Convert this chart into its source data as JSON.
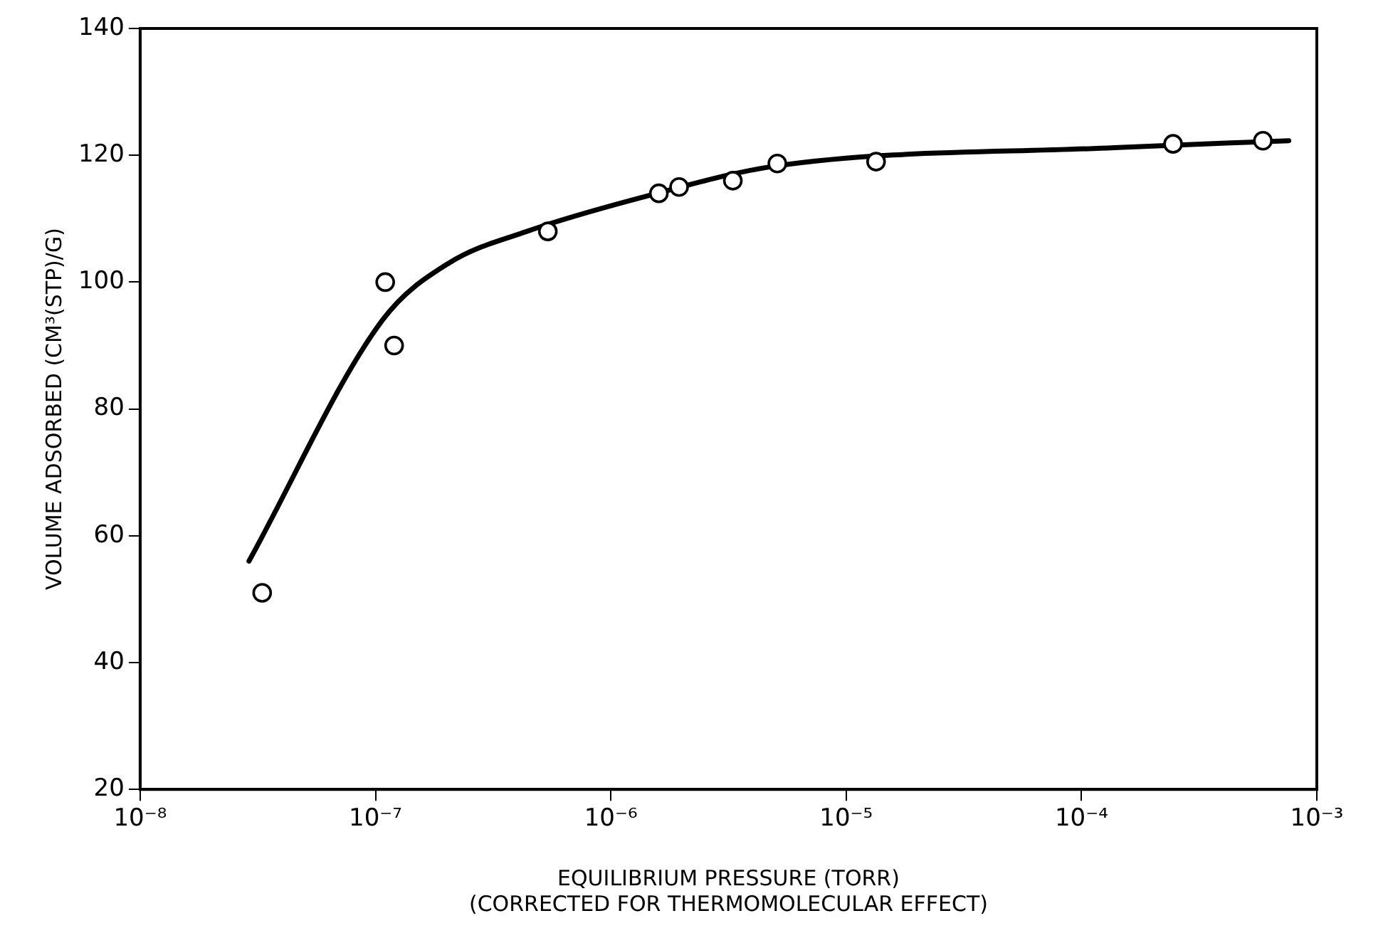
{
  "chart_data": {
    "type": "scatter",
    "xlabel": "EQUILIBRIUM PRESSURE (TORR)\n(CORRECTED FOR THERMOMOLECULAR EFFECT)",
    "ylabel": "VOLUME ADSORBED (CM³(STP)/G)",
    "log": "x",
    "xlim": [
      1e-08,
      0.001
    ],
    "xticks": [
      {
        "value": 1e-08,
        "label": "10⁻⁸"
      },
      {
        "value": 1e-07,
        "label": "10⁻⁷"
      },
      {
        "value": 1e-06,
        "label": "10⁻⁶"
      },
      {
        "value": 1e-05,
        "label": "10⁻⁵"
      },
      {
        "value": 0.0001,
        "label": "10⁻⁴"
      },
      {
        "value": 0.001,
        "label": "10⁻³"
      }
    ],
    "ylim": [
      20,
      140
    ],
    "yticks": [
      20,
      40,
      60,
      80,
      100,
      120,
      140
    ],
    "grid": false,
    "legend": false,
    "series": [
      {
        "type": "scatter",
        "marker": "circle",
        "color": "#000000",
        "x": [
          3.3e-08,
          1.1e-07,
          1.2e-07,
          5.4e-07,
          1.6e-06,
          1.95e-06,
          3.3e-06,
          5.1e-06,
          1.34e-05,
          0.000245,
          0.00059
        ],
        "values": [
          51,
          100,
          90,
          108,
          114,
          115,
          116,
          118.7,
          119,
          121.8,
          122.3
        ]
      },
      {
        "type": "line",
        "marker": "none",
        "line_style": "solid",
        "color": "#000000",
        "x": [
          2.9e-08,
          1.07e-07,
          2.05e-07,
          4.4e-07,
          1.4e-06,
          5e-06,
          0.000138,
          0.00076
        ],
        "values": [
          56,
          94,
          103,
          108,
          113.5,
          118.3,
          121.2,
          122.3
        ]
      }
    ]
  }
}
